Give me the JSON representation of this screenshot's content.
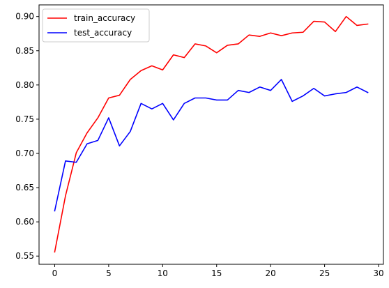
{
  "chart_data": {
    "type": "line",
    "title": "",
    "xlabel": "",
    "ylabel": "",
    "x": [
      0,
      1,
      2,
      3,
      4,
      5,
      6,
      7,
      8,
      9,
      10,
      11,
      12,
      13,
      14,
      15,
      16,
      17,
      18,
      19,
      20,
      21,
      22,
      23,
      24,
      25,
      26,
      27,
      28,
      29
    ],
    "xlim": [
      -1.45,
      30.45
    ],
    "ylim": [
      0.538,
      0.917
    ],
    "xticks": [
      0,
      5,
      10,
      15,
      20,
      25,
      30
    ],
    "xtick_labels": [
      "0",
      "5",
      "10",
      "15",
      "20",
      "25",
      "30"
    ],
    "yticks": [
      0.55,
      0.6,
      0.65,
      0.7,
      0.75,
      0.8,
      0.85,
      0.9
    ],
    "ytick_labels": [
      "0.55",
      "0.60",
      "0.65",
      "0.70",
      "0.75",
      "0.80",
      "0.85",
      "0.90"
    ],
    "grid": false,
    "legend_position": "upper-left",
    "series": [
      {
        "name": "train_accuracy",
        "color": "#ff0000",
        "values": [
          0.556,
          0.638,
          0.701,
          0.73,
          0.752,
          0.781,
          0.785,
          0.808,
          0.821,
          0.828,
          0.822,
          0.844,
          0.84,
          0.86,
          0.857,
          0.847,
          0.858,
          0.86,
          0.873,
          0.871,
          0.876,
          0.872,
          0.876,
          0.877,
          0.893,
          0.892,
          0.878,
          0.9,
          0.887,
          0.889
        ]
      },
      {
        "name": "test_accuracy",
        "color": "#0000ff",
        "values": [
          0.616,
          0.689,
          0.687,
          0.714,
          0.719,
          0.752,
          0.711,
          0.732,
          0.773,
          0.765,
          0.773,
          0.749,
          0.773,
          0.781,
          0.781,
          0.778,
          0.778,
          0.792,
          0.789,
          0.797,
          0.792,
          0.808,
          0.776,
          0.784,
          0.795,
          0.784,
          0.787,
          0.789,
          0.797,
          0.789
        ]
      }
    ]
  }
}
